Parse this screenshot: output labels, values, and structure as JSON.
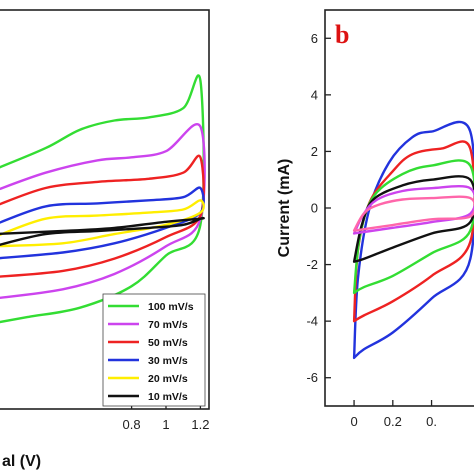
{
  "chart_data": [
    {
      "type": "line",
      "panel": "a",
      "xlabel": "al (V)",
      "ylabel": "",
      "xlim": [
        0.0,
        1.25
      ],
      "ylim": [
        -6.2,
        6.8
      ],
      "x_tick_labels": [
        "0.8",
        "1",
        "1.2"
      ],
      "x_ticks": [
        0.8,
        1.0,
        1.2
      ],
      "legend_position": "bottom-right",
      "series": [
        {
          "name": "100 mV/s",
          "color": "#33dd33",
          "upper": [
            [
              0.0,
              1.6
            ],
            [
              0.3,
              2.3
            ],
            [
              0.5,
              2.9
            ],
            [
              0.7,
              3.2
            ],
            [
              0.9,
              3.3
            ],
            [
              1.1,
              3.6
            ],
            [
              1.2,
              4.5
            ]
          ],
          "lower": [
            [
              1.2,
              -0.2
            ],
            [
              1.0,
              -1.2
            ],
            [
              0.8,
              -2.2
            ],
            [
              0.5,
              -2.9
            ],
            [
              0.2,
              -3.2
            ],
            [
              0.0,
              -3.4
            ]
          ]
        },
        {
          "name": "70 mV/s",
          "color": "#cc44ee",
          "upper": [
            [
              0.0,
              0.9
            ],
            [
              0.3,
              1.5
            ],
            [
              0.6,
              1.9
            ],
            [
              0.8,
              2.0
            ],
            [
              1.0,
              2.2
            ],
            [
              1.2,
              3.0
            ]
          ],
          "lower": [
            [
              1.2,
              0.0
            ],
            [
              1.0,
              -0.9
            ],
            [
              0.7,
              -1.8
            ],
            [
              0.4,
              -2.3
            ],
            [
              0.0,
              -2.6
            ]
          ]
        },
        {
          "name": "50 mV/s",
          "color": "#ee2222",
          "upper": [
            [
              0.0,
              0.4
            ],
            [
              0.3,
              1.0
            ],
            [
              0.6,
              1.2
            ],
            [
              0.9,
              1.3
            ],
            [
              1.1,
              1.5
            ],
            [
              1.2,
              2.0
            ]
          ],
          "lower": [
            [
              1.2,
              0.1
            ],
            [
              1.0,
              -0.6
            ],
            [
              0.7,
              -1.3
            ],
            [
              0.4,
              -1.7
            ],
            [
              0.0,
              -1.9
            ]
          ]
        },
        {
          "name": "30 mV/s",
          "color": "#2233dd",
          "upper": [
            [
              0.0,
              -0.2
            ],
            [
              0.3,
              0.4
            ],
            [
              0.6,
              0.5
            ],
            [
              0.9,
              0.6
            ],
            [
              1.1,
              0.7
            ],
            [
              1.2,
              1.0
            ]
          ],
          "lower": [
            [
              1.2,
              0.2
            ],
            [
              1.0,
              -0.3
            ],
            [
              0.7,
              -0.8
            ],
            [
              0.4,
              -1.1
            ],
            [
              0.0,
              -1.3
            ]
          ]
        },
        {
          "name": "20 mV/s",
          "color": "#ffee00",
          "upper": [
            [
              0.0,
              -0.6
            ],
            [
              0.3,
              0.0
            ],
            [
              0.6,
              0.1
            ],
            [
              0.9,
              0.2
            ],
            [
              1.1,
              0.3
            ],
            [
              1.2,
              0.6
            ]
          ],
          "lower": [
            [
              1.2,
              0.2
            ],
            [
              1.0,
              -0.2
            ],
            [
              0.7,
              -0.5
            ],
            [
              0.4,
              -0.8
            ],
            [
              0.0,
              -0.9
            ]
          ]
        },
        {
          "name": "10 mV/s",
          "color": "#111111",
          "upper": [
            [
              0.0,
              -0.9
            ],
            [
              0.3,
              -0.5
            ],
            [
              0.6,
              -0.4
            ],
            [
              0.9,
              -0.3
            ],
            [
              1.1,
              -0.2
            ],
            [
              1.2,
              0.0
            ]
          ],
          "lower": [
            [
              1.2,
              0.0
            ],
            [
              1.0,
              -0.1
            ],
            [
              0.7,
              -0.3
            ],
            [
              0.4,
              -0.4
            ],
            [
              0.0,
              -0.5
            ]
          ]
        }
      ]
    },
    {
      "type": "line",
      "panel": "b",
      "panel_label": "b",
      "panel_label_color": "#dd1111",
      "xlabel": "",
      "ylabel": "Current (mA)",
      "xlim": [
        -0.15,
        0.65
      ],
      "ylim": [
        -7.0,
        7.0
      ],
      "x_tick_labels": [
        "0",
        "0.2",
        "0."
      ],
      "x_ticks": [
        0.0,
        0.2,
        0.4
      ],
      "y_tick_labels": [
        "6",
        "4",
        "2",
        "0",
        "-2",
        "-4",
        "-6"
      ],
      "y_ticks": [
        6,
        4,
        2,
        0,
        -2,
        -4,
        -6
      ],
      "series": [
        {
          "name": "",
          "color": "#2233dd",
          "upper": [
            [
              0.0,
              -5.3
            ],
            [
              0.02,
              -2.5
            ],
            [
              0.08,
              0.0
            ],
            [
              0.18,
              1.6
            ],
            [
              0.3,
              2.5
            ],
            [
              0.4,
              2.7
            ],
            [
              0.6,
              2.7
            ]
          ],
          "lower": [
            [
              0.6,
              -1.8
            ],
            [
              0.4,
              -3.2
            ],
            [
              0.2,
              -4.4
            ],
            [
              0.05,
              -5.0
            ],
            [
              0.0,
              -5.3
            ]
          ]
        },
        {
          "name": "",
          "color": "#ee2222",
          "upper": [
            [
              0.0,
              -4.0
            ],
            [
              0.02,
              -1.5
            ],
            [
              0.08,
              0.2
            ],
            [
              0.2,
              1.3
            ],
            [
              0.3,
              1.9
            ],
            [
              0.45,
              2.1
            ],
            [
              0.6,
              2.1
            ]
          ],
          "lower": [
            [
              0.6,
              -1.2
            ],
            [
              0.4,
              -2.4
            ],
            [
              0.2,
              -3.3
            ],
            [
              0.05,
              -3.8
            ],
            [
              0.0,
              -4.0
            ]
          ]
        },
        {
          "name": "",
          "color": "#33dd33",
          "upper": [
            [
              0.0,
              -3.0
            ],
            [
              0.03,
              -1.0
            ],
            [
              0.1,
              0.4
            ],
            [
              0.25,
              1.2
            ],
            [
              0.4,
              1.5
            ],
            [
              0.6,
              1.5
            ]
          ],
          "lower": [
            [
              0.6,
              -0.8
            ],
            [
              0.4,
              -1.6
            ],
            [
              0.2,
              -2.4
            ],
            [
              0.05,
              -2.8
            ],
            [
              0.0,
              -3.0
            ]
          ]
        },
        {
          "name": "",
          "color": "#111111",
          "upper": [
            [
              0.0,
              -1.9
            ],
            [
              0.04,
              -0.6
            ],
            [
              0.1,
              0.3
            ],
            [
              0.25,
              0.8
            ],
            [
              0.4,
              1.0
            ],
            [
              0.6,
              1.0
            ]
          ],
          "lower": [
            [
              0.6,
              -0.5
            ],
            [
              0.4,
              -0.9
            ],
            [
              0.2,
              -1.4
            ],
            [
              0.05,
              -1.8
            ],
            [
              0.0,
              -1.9
            ]
          ]
        },
        {
          "name": "",
          "color": "#cc44ee",
          "upper": [
            [
              0.0,
              -0.9
            ],
            [
              0.05,
              -0.2
            ],
            [
              0.12,
              0.3
            ],
            [
              0.25,
              0.6
            ],
            [
              0.4,
              0.7
            ],
            [
              0.6,
              0.7
            ]
          ],
          "lower": [
            [
              0.6,
              -0.2
            ],
            [
              0.4,
              -0.5
            ],
            [
              0.2,
              -0.7
            ],
            [
              0.05,
              -0.85
            ],
            [
              0.0,
              -0.9
            ]
          ]
        },
        {
          "name": "",
          "color": "#ff66aa",
          "upper": [
            [
              0.0,
              -0.8
            ],
            [
              0.05,
              -0.2
            ],
            [
              0.12,
              0.1
            ],
            [
              0.25,
              0.3
            ],
            [
              0.4,
              0.35
            ],
            [
              0.6,
              0.35
            ]
          ],
          "lower": [
            [
              0.6,
              -0.3
            ],
            [
              0.4,
              -0.4
            ],
            [
              0.2,
              -0.6
            ],
            [
              0.05,
              -0.75
            ],
            [
              0.0,
              -0.8
            ]
          ]
        }
      ]
    }
  ]
}
